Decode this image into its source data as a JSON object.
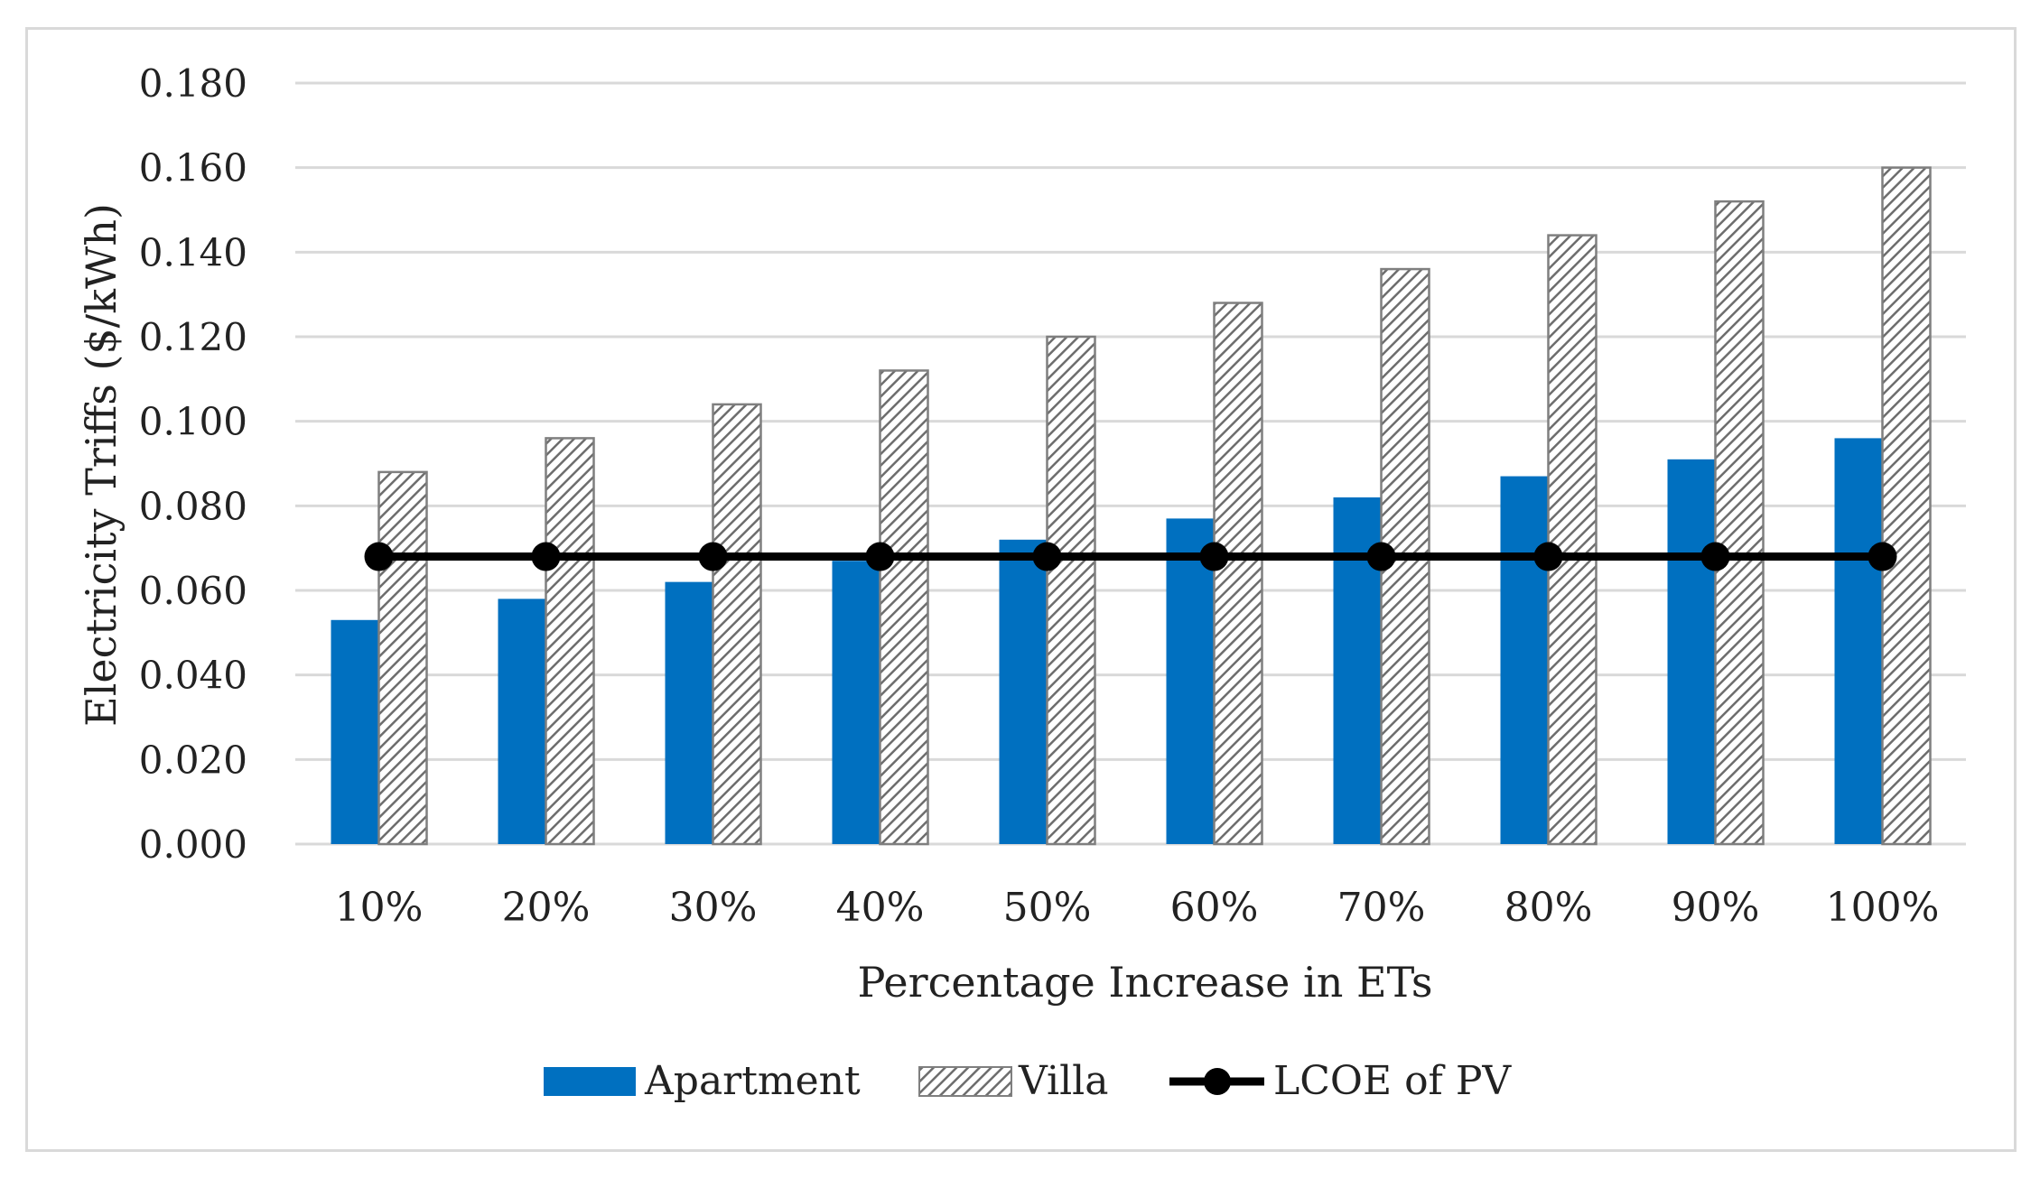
{
  "chart_data": {
    "type": "bar",
    "title": "",
    "xlabel": "Percentage Increase in ETs",
    "ylabel": "Electricity Triffs ($/kWh)",
    "ylim": [
      0,
      0.18
    ],
    "ytick_step": 0.02,
    "ytick_decimals": 3,
    "grid": true,
    "legend_position": "bottom",
    "categories": [
      "10%",
      "20%",
      "30%",
      "40%",
      "50%",
      "60%",
      "70%",
      "80%",
      "90%",
      "100%"
    ],
    "series": [
      {
        "name": "Apartment",
        "kind": "bar",
        "fill": "solid",
        "color": "#0070c0",
        "values": [
          0.053,
          0.058,
          0.062,
          0.067,
          0.072,
          0.077,
          0.082,
          0.087,
          0.091,
          0.096
        ]
      },
      {
        "name": "Villa",
        "kind": "bar",
        "fill": "hatch",
        "color": "#7f7f7f",
        "values": [
          0.088,
          0.096,
          0.104,
          0.112,
          0.12,
          0.128,
          0.136,
          0.144,
          0.152,
          0.16
        ]
      },
      {
        "name": "LCOE of PV",
        "kind": "line",
        "color": "#000000",
        "values": [
          0.068,
          0.068,
          0.068,
          0.068,
          0.068,
          0.068,
          0.068,
          0.068,
          0.068,
          0.068
        ]
      }
    ]
  }
}
